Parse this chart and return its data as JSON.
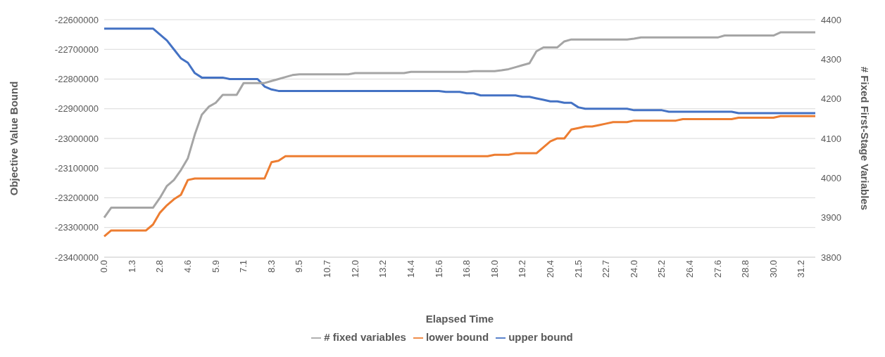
{
  "chart_data": {
    "type": "line",
    "xlabel": "Elapsed Time",
    "ylabel": "Objective Value Bound",
    "y2label": "# Fixed First-Stage Variables",
    "categories": [
      "0.0",
      null,
      null,
      null,
      "1.3",
      null,
      null,
      null,
      "2.8",
      null,
      null,
      null,
      "4.6",
      null,
      null,
      null,
      "5.9",
      null,
      null,
      null,
      "7.1",
      null,
      null,
      null,
      "8.3",
      null,
      null,
      null,
      "9.5",
      null,
      null,
      null,
      "10.7",
      null,
      null,
      null,
      "12.0",
      null,
      null,
      null,
      "13.2",
      null,
      null,
      null,
      "14.4",
      null,
      null,
      null,
      "15.6",
      null,
      null,
      null,
      "16.8",
      null,
      null,
      null,
      "18.0",
      null,
      null,
      null,
      "19.2",
      null,
      null,
      null,
      "20.4",
      null,
      null,
      null,
      "21.5",
      null,
      null,
      null,
      "22.7",
      null,
      null,
      null,
      "24.0",
      null,
      null,
      null,
      "25.2",
      null,
      null,
      null,
      "26.4",
      null,
      null,
      null,
      "27.6",
      null,
      null,
      null,
      "28.8",
      null,
      null,
      null,
      "30.0",
      null,
      null,
      null,
      "31.2",
      null,
      null
    ],
    "series": [
      {
        "name": "upper bound",
        "color": "#4472c4",
        "values": [
          -22630000,
          -22630000,
          -22630000,
          -22630000,
          -22630000,
          -22630000,
          -22630000,
          -22630000,
          -22650000,
          -22670000,
          -22700000,
          -22730000,
          -22745000,
          -22780000,
          -22795000,
          -22795000,
          -22795000,
          -22795000,
          -22800000,
          -22800000,
          -22800000,
          -22800000,
          -22800000,
          -22825000,
          -22835000,
          -22840000,
          -22840000,
          -22840000,
          -22840000,
          -22840000,
          -22840000,
          -22840000,
          -22840000,
          -22840000,
          -22840000,
          -22840000,
          -22840000,
          -22840000,
          -22840000,
          -22840000,
          -22840000,
          -22840000,
          -22840000,
          -22840000,
          -22840000,
          -22840000,
          -22840000,
          -22840000,
          -22840000,
          -22843000,
          -22843000,
          -22843000,
          -22848000,
          -22848000,
          -22855000,
          -22855000,
          -22855000,
          -22855000,
          -22855000,
          -22855000,
          -22860000,
          -22860000,
          -22865000,
          -22870000,
          -22875000,
          -22875000,
          -22880000,
          -22880000,
          -22895000,
          -22900000,
          -22900000,
          -22900000,
          -22900000,
          -22900000,
          -22900000,
          -22900000,
          -22905000,
          -22905000,
          -22905000,
          -22905000,
          -22905000,
          -22910000,
          -22910000,
          -22910000,
          -22910000,
          -22910000,
          -22910000,
          -22910000,
          -22910000,
          -22910000,
          -22910000,
          -22915000,
          -22915000,
          -22915000,
          -22915000,
          -22915000,
          -22915000,
          -22915000,
          -22915000,
          -22915000,
          -22915000,
          -22915000,
          -22915000
        ]
      },
      {
        "name": "lower bound",
        "color": "#ed7d31",
        "values": [
          -23330000,
          -23310000,
          -23310000,
          -23310000,
          -23310000,
          -23310000,
          -23310000,
          -23290000,
          -23250000,
          -23225000,
          -23205000,
          -23190000,
          -23140000,
          -23135000,
          -23135000,
          -23135000,
          -23135000,
          -23135000,
          -23135000,
          -23135000,
          -23135000,
          -23135000,
          -23135000,
          -23135000,
          -23080000,
          -23075000,
          -23060000,
          -23060000,
          -23060000,
          -23060000,
          -23060000,
          -23060000,
          -23060000,
          -23060000,
          -23060000,
          -23060000,
          -23060000,
          -23060000,
          -23060000,
          -23060000,
          -23060000,
          -23060000,
          -23060000,
          -23060000,
          -23060000,
          -23060000,
          -23060000,
          -23060000,
          -23060000,
          -23060000,
          -23060000,
          -23060000,
          -23060000,
          -23060000,
          -23060000,
          -23060000,
          -23055000,
          -23055000,
          -23055000,
          -23050000,
          -23050000,
          -23050000,
          -23050000,
          -23030000,
          -23010000,
          -23000000,
          -23000000,
          -22970000,
          -22965000,
          -22960000,
          -22960000,
          -22955000,
          -22950000,
          -22945000,
          -22945000,
          -22945000,
          -22940000,
          -22940000,
          -22940000,
          -22940000,
          -22940000,
          -22940000,
          -22940000,
          -22935000,
          -22935000,
          -22935000,
          -22935000,
          -22935000,
          -22935000,
          -22935000,
          -22935000,
          -22930000,
          -22930000,
          -22930000,
          -22930000,
          -22930000,
          -22930000,
          -22925000,
          -22925000,
          -22925000,
          -22925000,
          -22925000,
          -22925000
        ]
      },
      {
        "name": "# fixed variables",
        "color": "#a5a5a5",
        "axis": "y2",
        "values": [
          3900,
          3925,
          3925,
          3925,
          3925,
          3925,
          3925,
          3925,
          3950,
          3980,
          3995,
          4020,
          4050,
          4110,
          4160,
          4180,
          4190,
          4210,
          4210,
          4210,
          4240,
          4240,
          4240,
          4240,
          4245,
          4250,
          4255,
          4260,
          4262,
          4262,
          4262,
          4262,
          4262,
          4262,
          4262,
          4262,
          4265,
          4265,
          4265,
          4265,
          4265,
          4265,
          4265,
          4265,
          4268,
          4268,
          4268,
          4268,
          4268,
          4268,
          4268,
          4268,
          4268,
          4270,
          4270,
          4270,
          4270,
          4272,
          4275,
          4280,
          4285,
          4290,
          4320,
          4330,
          4330,
          4330,
          4345,
          4350,
          4350,
          4350,
          4350,
          4350,
          4350,
          4350,
          4350,
          4350,
          4352,
          4355,
          4355,
          4355,
          4355,
          4355,
          4355,
          4355,
          4355,
          4355,
          4355,
          4355,
          4355,
          4360,
          4360,
          4360,
          4360,
          4360,
          4360,
          4360,
          4360,
          4368,
          4368,
          4368,
          4368,
          4368,
          4368
        ]
      }
    ],
    "ylim": [
      -23400000,
      -22600000
    ],
    "yticks": [
      -23400000,
      -23300000,
      -23200000,
      -23100000,
      -23000000,
      -22900000,
      -22800000,
      -22700000,
      -22600000
    ],
    "y2lim": [
      3800,
      4400
    ],
    "y2ticks": [
      3800,
      3900,
      4000,
      4100,
      4200,
      4300,
      4400
    ],
    "grid": "y",
    "legend": "bottom",
    "marker": "none",
    "line_style": "solid"
  }
}
